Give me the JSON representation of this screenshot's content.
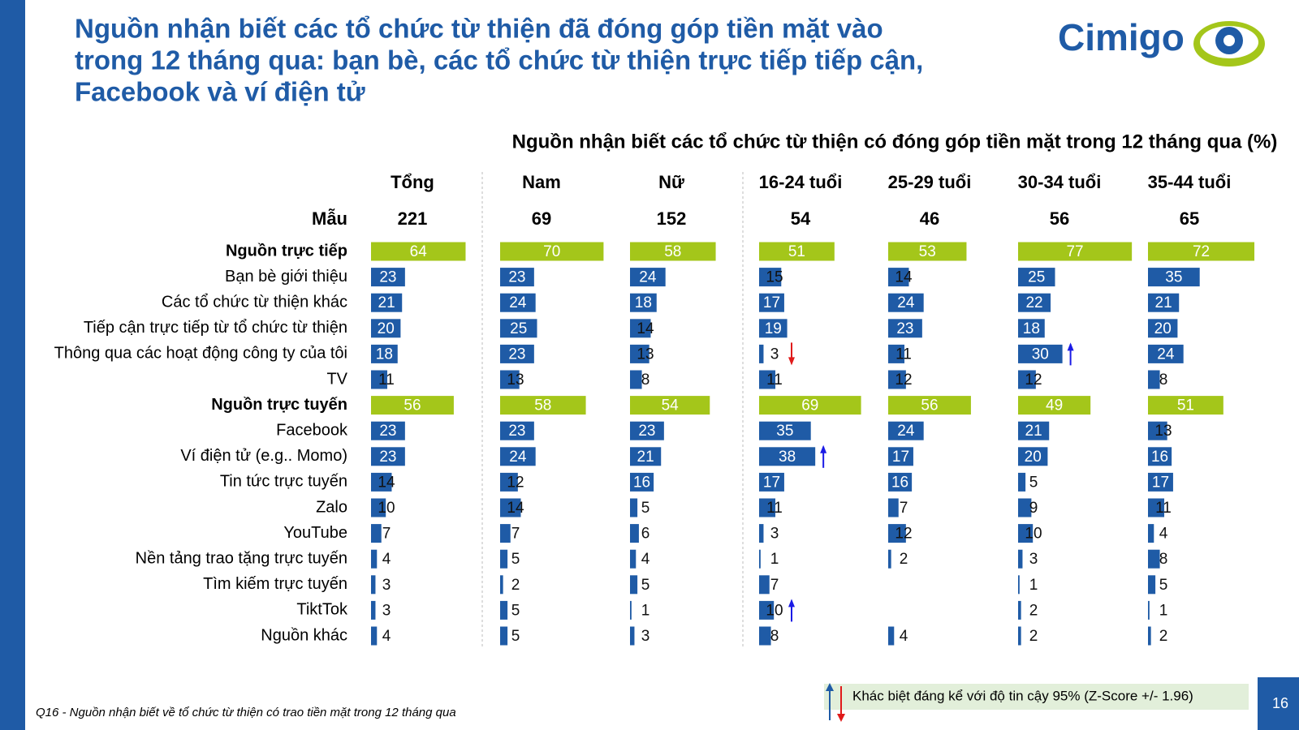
{
  "title": [
    "Nguồn nhận biết các tổ chức từ thiện đã đóng góp tiền mặt vào",
    "trong 12 tháng qua: bạn bè, các tổ chức từ thiện trực tiếp tiếp cận,",
    "Facebook và ví điện tử"
  ],
  "logo": "Cimigo",
  "chart_data": {
    "type": "bar",
    "title": "Nguồn nhận biết các tổ chức từ thiện có đóng góp tiền mặt trong 12 tháng qua (%)",
    "sample_label": "Mẫu",
    "categories": [
      "Nguồn trực tiếp",
      "Bạn bè giới thiệu",
      "Các tổ chức từ thiện khác",
      "Tiếp cận trực tiếp từ tổ chức từ thiện",
      "Thông qua các hoạt động công ty của tôi",
      "TV",
      "Nguồn trực tuyến",
      "Facebook",
      "Ví điện tử (e.g.. Momo)",
      "Tin tức trực tuyến",
      "Zalo",
      "YouTube",
      "Nền tảng trao tặng trực tuyến",
      "Tìm kiếm trực tuyến",
      "TiktTok",
      "Nguồn khác"
    ],
    "header_rows": [
      0,
      6
    ],
    "header_color": "#a4c61a",
    "color": "#1f5ba6",
    "xlim": [
      0,
      100
    ],
    "series": [
      {
        "name": "Tổng",
        "sample": 221,
        "values": [
          64,
          23,
          21,
          20,
          18,
          11,
          56,
          23,
          23,
          14,
          10,
          7,
          4,
          3,
          3,
          4
        ]
      },
      {
        "name": "Nam",
        "sample": 69,
        "values": [
          70,
          23,
          24,
          25,
          23,
          13,
          58,
          23,
          24,
          12,
          14,
          7,
          5,
          2,
          5,
          5
        ]
      },
      {
        "name": "Nữ",
        "sample": 152,
        "values": [
          58,
          24,
          18,
          14,
          13,
          8,
          54,
          23,
          21,
          16,
          5,
          6,
          4,
          5,
          1,
          3
        ]
      },
      {
        "name": "16-24 tuổi",
        "sample": 54,
        "values": [
          51,
          15,
          17,
          19,
          3,
          11,
          69,
          35,
          38,
          17,
          11,
          3,
          1,
          7,
          10,
          8
        ],
        "up": [
          8,
          14
        ],
        "down": [
          4
        ]
      },
      {
        "name": "25-29 tuổi",
        "sample": 46,
        "values": [
          53,
          14,
          24,
          23,
          11,
          12,
          56,
          24,
          17,
          16,
          7,
          12,
          2,
          null,
          null,
          4
        ]
      },
      {
        "name": "30-34 tuổi",
        "sample": 56,
        "values": [
          77,
          25,
          22,
          18,
          30,
          12,
          49,
          21,
          20,
          5,
          9,
          10,
          3,
          1,
          2,
          2
        ],
        "up": [
          4
        ]
      },
      {
        "name": "35-44 tuổi",
        "sample": 65,
        "values": [
          72,
          35,
          21,
          20,
          24,
          8,
          51,
          13,
          16,
          17,
          11,
          4,
          8,
          5,
          1,
          2
        ]
      }
    ],
    "up_color": "#1a1ae6",
    "down_color": "#e01a1a",
    "legend": "Khác biệt đáng kể với độ tin cậy 95%  (Z-Score +/- 1.96)"
  },
  "footnote": "Q16 - Nguồn nhận biết về tổ chức từ thiện có trao tiền mặt trong 12 tháng qua",
  "page_number": "16"
}
